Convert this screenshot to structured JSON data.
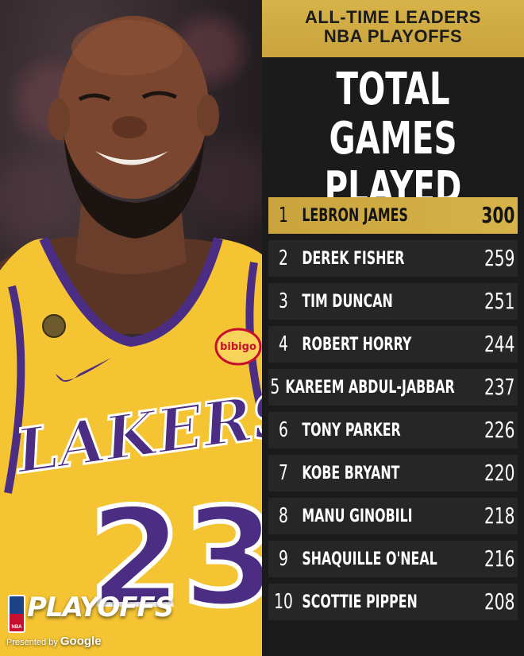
{
  "header": {
    "line1": "ALL-TIME LEADERS",
    "line2": "NBA PLAYOFFS"
  },
  "title": {
    "line1": "TOTAL",
    "line2": "GAMES PLAYED"
  },
  "leaders": [
    {
      "rank": "1",
      "name": "LEBRON JAMES",
      "games": "300"
    },
    {
      "rank": "2",
      "name": "DEREK FISHER",
      "games": "259"
    },
    {
      "rank": "3",
      "name": "TIM DUNCAN",
      "games": "251"
    },
    {
      "rank": "4",
      "name": "ROBERT HORRY",
      "games": "244"
    },
    {
      "rank": "5",
      "name": "KAREEM ABDUL-JABBAR",
      "games": "237"
    },
    {
      "rank": "6",
      "name": "TONY PARKER",
      "games": "226"
    },
    {
      "rank": "7",
      "name": "KOBE BRYANT",
      "games": "220"
    },
    {
      "rank": "8",
      "name": "MANU GINOBILI",
      "games": "218"
    },
    {
      "rank": "9",
      "name": "SHAQUILLE O'NEAL",
      "games": "216"
    },
    {
      "rank": "10",
      "name": "SCOTTIE PIPPEN",
      "games": "208"
    }
  ],
  "jersey": {
    "team": "LAKERS",
    "number": "23",
    "patch": "bibigo"
  },
  "branding": {
    "logo_text": "PLAYOFFS",
    "nba": "NBA",
    "presented_by": "Presented by",
    "sponsor": "Google"
  },
  "colors": {
    "gold": "#d7b34a",
    "panel": "#1b1b1b",
    "row": "#262626",
    "jersey_gold": "#f5c433",
    "jersey_purple": "#4b2e83"
  }
}
